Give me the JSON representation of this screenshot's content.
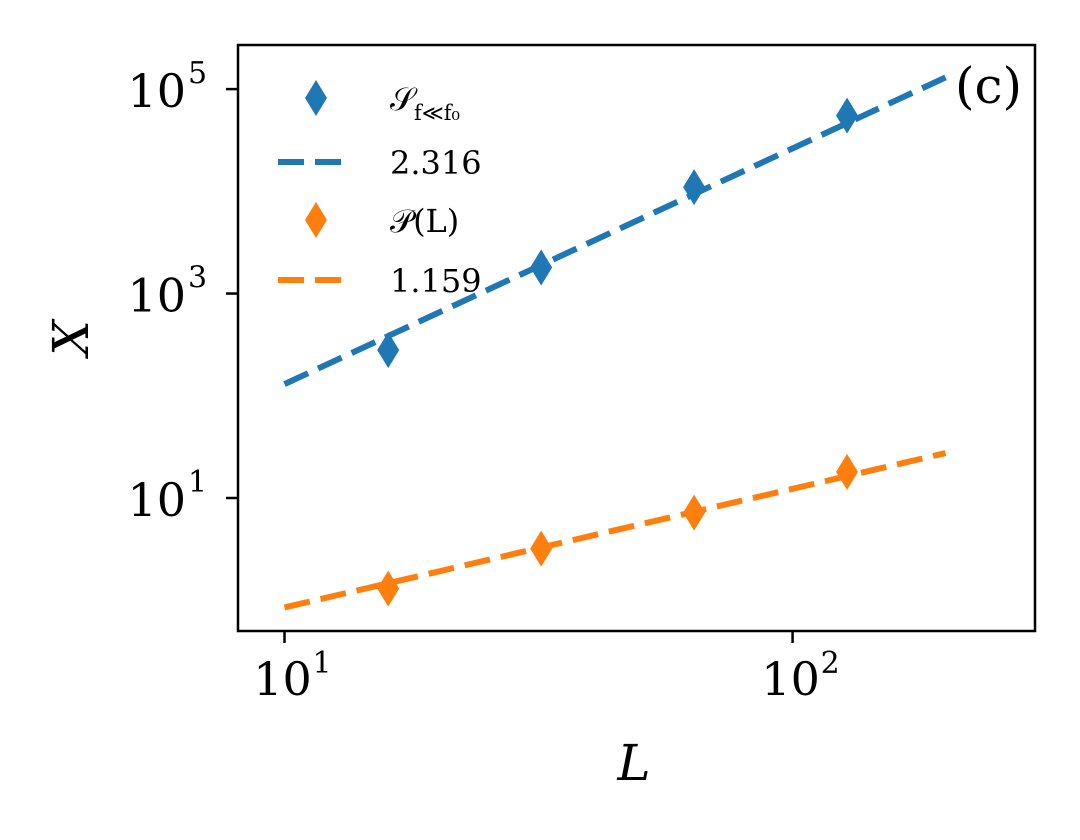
{
  "chart_data": {
    "type": "scatter",
    "panel_label": "(c)",
    "xlabel": "L",
    "ylabel": "X",
    "xscale": "log",
    "yscale": "log",
    "xlim": [
      8.1,
      300
    ],
    "ylim": [
      0.5,
      270000
    ],
    "x_ticks": [
      {
        "value": 10,
        "base": "10",
        "exp": "1"
      },
      {
        "value": 100,
        "base": "10",
        "exp": "2"
      }
    ],
    "y_ticks": [
      {
        "value": 10,
        "base": "10",
        "exp": "1"
      },
      {
        "value": 1000,
        "base": "10",
        "exp": "3"
      },
      {
        "value": 100000,
        "base": "10",
        "exp": "5"
      }
    ],
    "legend_position": "top-left",
    "series": [
      {
        "name": "S_{f<<f0}",
        "legend_main": "𝒮",
        "legend_sub": "f≪f₀",
        "kind": "points",
        "marker": "diamond",
        "color": "#1f77b4",
        "x": [
          16,
          32,
          64,
          128
        ],
        "y": [
          280,
          1800,
          11000,
          55000
        ]
      },
      {
        "name": "2.316",
        "legend_main": "2.316",
        "legend_sub": "",
        "kind": "fit",
        "slope": 2.316,
        "color": "#1f77b4",
        "x": [
          10,
          200
        ],
        "y": [
          130,
          130000
        ]
      },
      {
        "name": "P(L)",
        "legend_main": "𝒫(L)",
        "legend_sub": "",
        "kind": "points",
        "marker": "diamond",
        "color": "#ff7f0e",
        "x": [
          16,
          32,
          64,
          128
        ],
        "y": [
          1.3,
          3.2,
          7.2,
          18
        ]
      },
      {
        "name": "1.159",
        "legend_main": "1.159",
        "legend_sub": "",
        "kind": "fit",
        "slope": 1.159,
        "color": "#ff7f0e",
        "x": [
          10,
          200
        ],
        "y": [
          0.85,
          27.5
        ]
      }
    ]
  }
}
